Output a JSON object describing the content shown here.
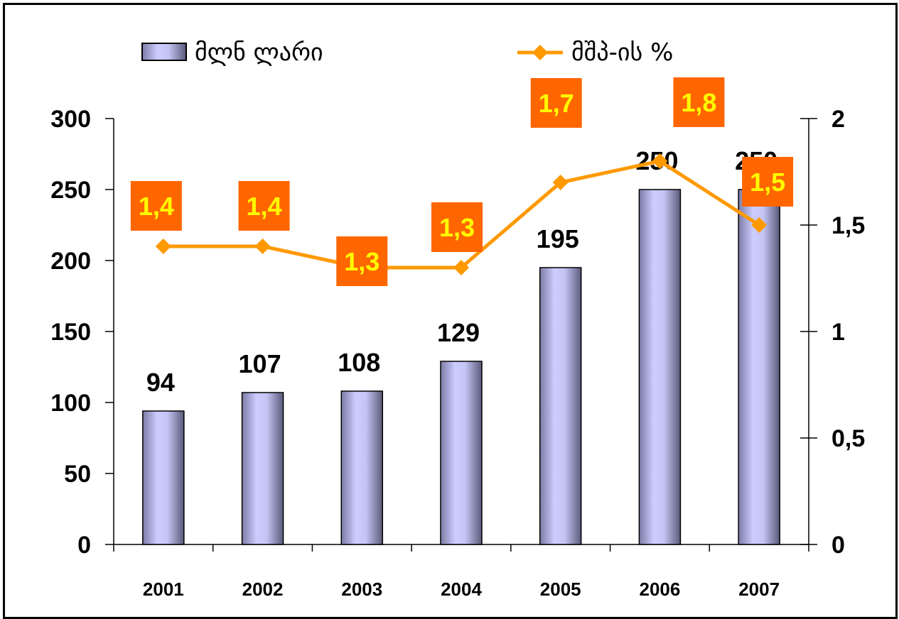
{
  "chart_data": {
    "type": "bar",
    "categories": [
      "2001",
      "2002",
      "2003",
      "2004",
      "2005",
      "2006",
      "2007"
    ],
    "series": [
      {
        "name": "მლნ  ლარი",
        "kind": "bar",
        "axis": "left",
        "values": [
          94,
          107,
          108,
          129,
          195,
          250,
          250
        ],
        "labels": [
          "94",
          "107",
          "108",
          "129",
          "195",
          "250",
          "250"
        ]
      },
      {
        "name": "მშპ-ის  %",
        "kind": "line",
        "axis": "right",
        "values": [
          1.4,
          1.4,
          1.3,
          1.3,
          1.7,
          1.8,
          1.5
        ],
        "labels": [
          "1,4",
          "1,4",
          "1,3",
          "1,3",
          "1,7",
          "1,8",
          "1,5"
        ]
      }
    ],
    "y_left": {
      "min": 0,
      "max": 300,
      "ticks": [
        "0",
        "50",
        "100",
        "150",
        "200",
        "250",
        "300"
      ]
    },
    "y_right": {
      "min": 0,
      "max": 2,
      "ticks": [
        "0",
        "0,5",
        "1",
        "1,5",
        "2"
      ]
    },
    "legend_position": "top",
    "grid": false,
    "colors": {
      "bar_light": "#CCCCFF",
      "bar_dark": "#5A5A7A",
      "line": "#FF9900",
      "marker": "#FF9900",
      "label_box": "#FF6600",
      "label_text": "#FFFF00"
    }
  }
}
